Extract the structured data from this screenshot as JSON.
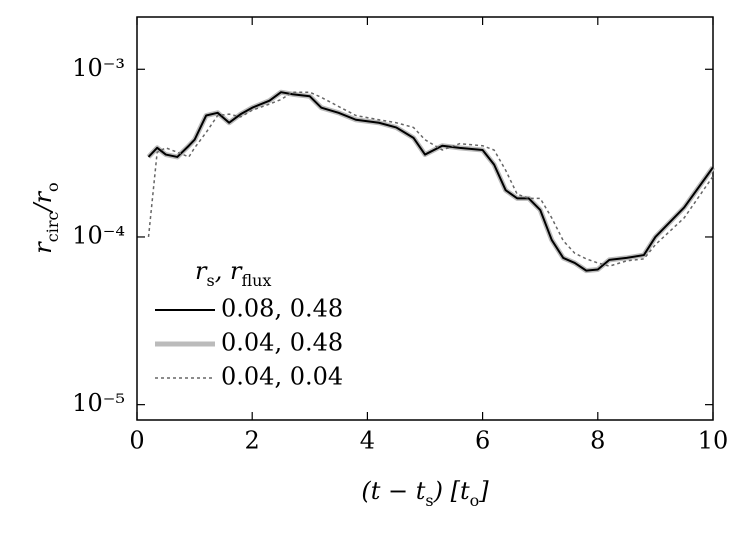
{
  "chart_data": {
    "type": "line",
    "xlabel": [
      "(t − t",
      "s",
      ") [t",
      "o",
      "]"
    ],
    "ylabel": [
      "r",
      "circ",
      "/r",
      "o"
    ],
    "legend_title": [
      "r",
      "s",
      ", r",
      "flux"
    ],
    "legend": "lower left",
    "log_y": true,
    "xlim": [
      0,
      10
    ],
    "xticks": [
      0,
      2,
      4,
      6,
      8,
      10
    ],
    "ylim": [
      8.1e-06,
      0.00205
    ],
    "yticks": [
      {
        "value": 0.001,
        "label": "10⁻³"
      },
      {
        "value": 0.0001,
        "label": "10⁻⁴"
      },
      {
        "value": 1e-05,
        "label": "10⁻⁵"
      }
    ],
    "x": [
      0.2,
      0.35,
      0.5,
      0.7,
      0.9,
      1.0,
      1.2,
      1.4,
      1.6,
      1.8,
      2.0,
      2.3,
      2.5,
      2.7,
      3.0,
      3.2,
      3.5,
      3.8,
      4.2,
      4.5,
      4.8,
      5.0,
      5.3,
      5.6,
      6.0,
      6.2,
      6.4,
      6.6,
      6.8,
      7.0,
      7.2,
      7.4,
      7.6,
      7.8,
      8.0,
      8.2,
      8.5,
      8.8,
      9.0,
      9.5,
      10.0
    ],
    "series": [
      {
        "name": "0.04, 0.48",
        "color": "#bbbbbb",
        "width": 5,
        "dash": "none",
        "values": [
          0.0003,
          0.00034,
          0.00031,
          0.0003,
          0.00035,
          0.00038,
          0.00053,
          0.00055,
          0.00048,
          0.00054,
          0.00059,
          0.00065,
          0.00073,
          0.00071,
          0.00069,
          0.00059,
          0.00055,
          0.0005,
          0.00048,
          0.00045,
          0.00039,
          0.00031,
          0.00035,
          0.00034,
          0.00033,
          0.00027,
          0.00019,
          0.00017,
          0.00017,
          0.000145,
          9.6e-05,
          7.5e-05,
          7e-05,
          6.3e-05,
          6.4e-05,
          7.3e-05,
          7.5e-05,
          7.8e-05,
          0.0001,
          0.00015,
          0.00026
        ]
      },
      {
        "name": "0.08, 0.48",
        "color": "#000000",
        "width": 2,
        "dash": "none",
        "values": [
          0.0003,
          0.00034,
          0.00031,
          0.0003,
          0.00035,
          0.00038,
          0.00053,
          0.00055,
          0.00048,
          0.00054,
          0.00059,
          0.00065,
          0.00073,
          0.00071,
          0.00069,
          0.00059,
          0.00055,
          0.0005,
          0.00048,
          0.00045,
          0.00039,
          0.00031,
          0.00035,
          0.00034,
          0.00033,
          0.00027,
          0.00019,
          0.00017,
          0.00017,
          0.000145,
          9.6e-05,
          7.5e-05,
          7e-05,
          6.3e-05,
          6.4e-05,
          7.3e-05,
          7.5e-05,
          7.8e-05,
          0.0001,
          0.00015,
          0.00026
        ]
      },
      {
        "name": "0.04, 0.04",
        "color": "#666666",
        "width": 1.5,
        "dash": "3,3",
        "values": [
          0.0001,
          0.00032,
          0.00034,
          0.00032,
          0.0003,
          0.00034,
          0.00042,
          0.00053,
          0.00054,
          0.00052,
          0.00057,
          0.00062,
          0.00066,
          0.00073,
          0.00073,
          0.00068,
          0.0006,
          0.00053,
          0.0005,
          0.00048,
          0.00045,
          0.00038,
          0.00033,
          0.00036,
          0.00035,
          0.00033,
          0.00025,
          0.00018,
          0.00017,
          0.00017,
          0.00013,
          9.5e-05,
          8e-05,
          7.4e-05,
          7e-05,
          6.7e-05,
          7.2e-05,
          7.4e-05,
          9e-05,
          0.00013,
          0.00023
        ]
      }
    ]
  }
}
